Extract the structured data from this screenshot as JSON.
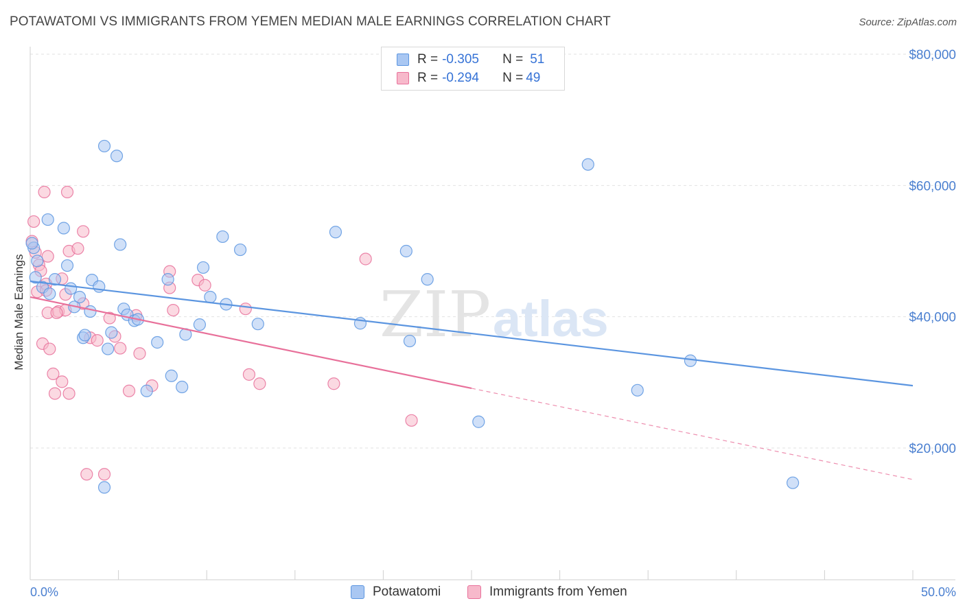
{
  "title": "POTAWATOMI VS IMMIGRANTS FROM YEMEN MEDIAN MALE EARNINGS CORRELATION CHART",
  "source": "Source: ZipAtlas.com",
  "watermark": {
    "zip": "ZIP",
    "atlas": "atlas"
  },
  "legend": {
    "rows": [
      {
        "r_label": "R = ",
        "r_value": "-0.305",
        "n_label": "N = ",
        "n_value": "51",
        "color": "#a9c7f2"
      },
      {
        "r_label": "R = ",
        "r_value": "-0.294",
        "n_label": "N = ",
        "n_value": "49",
        "color": "#f7b9cb"
      }
    ]
  },
  "bottom_legend": [
    {
      "label": "Potawatomi",
      "color": "#a9c7f2"
    },
    {
      "label": "Immigrants from Yemen",
      "color": "#f7b9cb"
    }
  ],
  "chart_data": {
    "type": "scatter",
    "title": "POTAWATOMI VS IMMIGRANTS FROM YEMEN MEDIAN MALE EARNINGS CORRELATION CHART",
    "xlabel": "",
    "ylabel": "Median Male Earnings",
    "xlim": [
      0,
      50
    ],
    "ylim": [
      2000,
      83000
    ],
    "x_tick_labels": [
      "0.0%",
      "50.0%"
    ],
    "y_ticks": [
      20000,
      40000,
      60000,
      80000
    ],
    "y_tick_labels": [
      "$20,000",
      "$40,000",
      "$60,000",
      "$80,000"
    ],
    "grid": true,
    "series": [
      {
        "name": "Potawatomi",
        "color": "#5b95e0",
        "fill": "#a9c7f2",
        "trend": {
          "x": [
            0,
            50
          ],
          "y": [
            45400,
            29500
          ],
          "dashed_from": null
        },
        "points": [
          [
            0.2,
            50500
          ],
          [
            0.4,
            48500
          ],
          [
            0.7,
            44500
          ],
          [
            1.0,
            54800
          ],
          [
            1.1,
            43500
          ],
          [
            1.4,
            45700
          ],
          [
            1.9,
            53500
          ],
          [
            2.1,
            47800
          ],
          [
            2.3,
            44300
          ],
          [
            2.5,
            41500
          ],
          [
            2.8,
            43000
          ],
          [
            3.0,
            36800
          ],
          [
            3.1,
            37200
          ],
          [
            3.4,
            40800
          ],
          [
            3.5,
            45600
          ],
          [
            3.9,
            44600
          ],
          [
            4.2,
            14000
          ],
          [
            4.4,
            35100
          ],
          [
            4.6,
            37600
          ],
          [
            4.2,
            66000
          ],
          [
            4.9,
            64500
          ],
          [
            5.1,
            51000
          ],
          [
            5.3,
            41200
          ],
          [
            5.5,
            40300
          ],
          [
            5.9,
            39400
          ],
          [
            6.1,
            39600
          ],
          [
            6.6,
            28700
          ],
          [
            7.2,
            36100
          ],
          [
            7.8,
            45700
          ],
          [
            8.0,
            31000
          ],
          [
            8.6,
            29300
          ],
          [
            8.8,
            37300
          ],
          [
            9.6,
            38800
          ],
          [
            9.8,
            47500
          ],
          [
            10.2,
            43000
          ],
          [
            10.9,
            52200
          ],
          [
            11.1,
            41900
          ],
          [
            11.9,
            50200
          ],
          [
            12.9,
            38900
          ],
          [
            17.3,
            52900
          ],
          [
            18.7,
            39000
          ],
          [
            21.3,
            50000
          ],
          [
            21.5,
            36300
          ],
          [
            22.5,
            45700
          ],
          [
            25.4,
            24000
          ],
          [
            31.6,
            63200
          ],
          [
            34.4,
            28800
          ],
          [
            37.4,
            33300
          ],
          [
            43.2,
            14700
          ],
          [
            0.1,
            51200
          ],
          [
            0.3,
            46000
          ]
        ]
      },
      {
        "name": "Immigrants from Yemen",
        "color": "#e8709a",
        "fill": "#f7b9cb",
        "trend": {
          "x": [
            0,
            50
          ],
          "y": [
            43000,
            15200
          ],
          "dashed_from": 25
        },
        "points": [
          [
            0.2,
            54500
          ],
          [
            0.1,
            51500
          ],
          [
            0.4,
            43800
          ],
          [
            0.5,
            47900
          ],
          [
            0.6,
            47000
          ],
          [
            0.7,
            35900
          ],
          [
            0.8,
            59000
          ],
          [
            0.9,
            45000
          ],
          [
            1.0,
            49200
          ],
          [
            1.0,
            40600
          ],
          [
            1.1,
            35100
          ],
          [
            1.3,
            31300
          ],
          [
            1.4,
            28300
          ],
          [
            1.6,
            40800
          ],
          [
            1.8,
            30100
          ],
          [
            2.0,
            41000
          ],
          [
            2.1,
            59000
          ],
          [
            2.2,
            28300
          ],
          [
            2.2,
            50000
          ],
          [
            1.8,
            45800
          ],
          [
            2.0,
            43400
          ],
          [
            2.7,
            50400
          ],
          [
            3.0,
            42000
          ],
          [
            3.0,
            53000
          ],
          [
            3.2,
            16000
          ],
          [
            3.4,
            36800
          ],
          [
            3.8,
            36400
          ],
          [
            4.2,
            16000
          ],
          [
            4.5,
            39800
          ],
          [
            4.8,
            37000
          ],
          [
            5.1,
            35200
          ],
          [
            5.6,
            28700
          ],
          [
            6.0,
            40200
          ],
          [
            6.2,
            34400
          ],
          [
            6.9,
            29500
          ],
          [
            7.9,
            46900
          ],
          [
            7.9,
            44400
          ],
          [
            8.1,
            41000
          ],
          [
            9.5,
            45600
          ],
          [
            9.9,
            44800
          ],
          [
            12.2,
            41200
          ],
          [
            12.4,
            31200
          ],
          [
            13.0,
            29800
          ],
          [
            17.2,
            29800
          ],
          [
            19.0,
            48800
          ],
          [
            21.6,
            24200
          ],
          [
            0.3,
            49800
          ],
          [
            1.5,
            40600
          ],
          [
            0.9,
            44000
          ]
        ]
      }
    ]
  }
}
